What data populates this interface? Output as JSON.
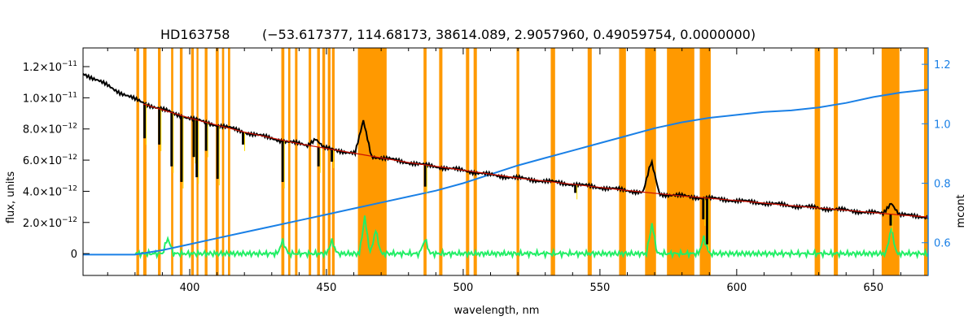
{
  "colors": {
    "mask": "#ff9900",
    "flux": "#000000",
    "model": "#cc1100",
    "masked_flux": "#ffdd00",
    "mcont": "#1a80e6",
    "residual": "#22ee66",
    "right_axis": "#1a80e6"
  },
  "chart_data": {
    "type": "line",
    "title": "HD163758",
    "subtitle": "(−53.617377, 114.68173, 38614.089, 2.9057960, 0.49059754, 0.0000000)",
    "xlabel": "wavelength, nm",
    "ylabel": "flux, units",
    "y2label": "mcont",
    "xlim": [
      361,
      670
    ],
    "ylim": [
      -1.4e-12,
      1.32e-11
    ],
    "y2lim": [
      0.49,
      1.255
    ],
    "xticks": [
      400,
      450,
      500,
      550,
      600,
      650
    ],
    "yticks": [
      {
        "value": 1.2e-11,
        "mant": "1.2",
        "exp": "−11"
      },
      {
        "value": 1e-11,
        "mant": "1.0",
        "exp": "−11"
      },
      {
        "value": 8e-12,
        "mant": "8.0",
        "exp": "−12"
      },
      {
        "value": 6e-12,
        "mant": "6.0",
        "exp": "−12"
      },
      {
        "value": 4e-12,
        "mant": "4.0",
        "exp": "−12"
      },
      {
        "value": 2e-12,
        "mant": "2.0",
        "exp": "−12"
      },
      {
        "value": 0,
        "mant": "0",
        "exp": ""
      }
    ],
    "y2ticks": [
      "1.2",
      "1.0",
      "0.8",
      "0.6"
    ],
    "y2tick_values": [
      1.2,
      1.0,
      0.8,
      0.6
    ],
    "masked_regions": [
      [
        380.5,
        381.5
      ],
      [
        383.0,
        384.2
      ],
      [
        388.4,
        389.4
      ],
      [
        393.2,
        394.0
      ],
      [
        396.4,
        397.4
      ],
      [
        400.5,
        401.5
      ],
      [
        402.5,
        403.2
      ],
      [
        405.5,
        406.5
      ],
      [
        409.5,
        410.6
      ],
      [
        411.8,
        412.6
      ],
      [
        414.0,
        414.8
      ],
      [
        433.5,
        434.6
      ],
      [
        436.0,
        436.8
      ],
      [
        438.5,
        439.4
      ],
      [
        443.5,
        444.4
      ],
      [
        446.6,
        447.6
      ],
      [
        448.5,
        449.5
      ],
      [
        450.5,
        451.5
      ],
      [
        452.0,
        453.0
      ],
      [
        461.5,
        472.0
      ],
      [
        485.5,
        486.6
      ],
      [
        491.2,
        492.4
      ],
      [
        501.0,
        502.2
      ],
      [
        503.8,
        505.0
      ],
      [
        519.5,
        520.5
      ],
      [
        532.0,
        533.6
      ],
      [
        545.5,
        547.0
      ],
      [
        557.0,
        559.5
      ],
      [
        566.5,
        570.5
      ],
      [
        574.5,
        584.5
      ],
      [
        586.5,
        590.5
      ],
      [
        628.5,
        630.5
      ],
      [
        635.5,
        637.0
      ],
      [
        653.0,
        659.5
      ],
      [
        668.5,
        670.0
      ]
    ],
    "series": [
      {
        "key": "flux",
        "points": [
          [
            361,
            1.16e-11
          ],
          [
            365,
            1.12e-11
          ],
          [
            370,
            1.08e-11
          ],
          [
            375,
            1.03e-11
          ],
          [
            380,
            9.9e-12
          ],
          [
            385,
            9.55e-12
          ],
          [
            390,
            9.25e-12
          ],
          [
            395,
            8.95e-12
          ],
          [
            400,
            8.7e-12
          ],
          [
            405,
            8.45e-12
          ],
          [
            410,
            8.25e-12
          ],
          [
            415,
            8.05e-12
          ],
          [
            420,
            7.8e-12
          ],
          [
            425,
            7.6e-12
          ],
          [
            430,
            7.4e-12
          ],
          [
            435,
            7.2e-12
          ],
          [
            440,
            7.05e-12
          ],
          [
            445,
            6.9e-12
          ],
          [
            450,
            6.75e-12
          ],
          [
            455,
            6.6e-12
          ],
          [
            460,
            6.45e-12
          ],
          [
            465,
            6.3e-12
          ],
          [
            470,
            6.15e-12
          ],
          [
            475,
            6e-12
          ],
          [
            480,
            5.85e-12
          ],
          [
            485,
            5.7e-12
          ],
          [
            490,
            5.6e-12
          ],
          [
            495,
            5.45e-12
          ],
          [
            500,
            5.35e-12
          ],
          [
            505,
            5.2e-12
          ],
          [
            510,
            5.05e-12
          ],
          [
            515,
            4.95e-12
          ],
          [
            520,
            4.85e-12
          ],
          [
            525,
            4.75e-12
          ],
          [
            530,
            4.65e-12
          ],
          [
            535,
            4.55e-12
          ],
          [
            540,
            4.45e-12
          ],
          [
            545,
            4.35e-12
          ],
          [
            550,
            4.25e-12
          ],
          [
            555,
            4.15e-12
          ],
          [
            560,
            4.05e-12
          ],
          [
            565,
            3.95e-12
          ],
          [
            570,
            3.85e-12
          ],
          [
            575,
            3.78e-12
          ],
          [
            580,
            3.7e-12
          ],
          [
            585,
            3.62e-12
          ],
          [
            590,
            3.55e-12
          ],
          [
            595,
            3.48e-12
          ],
          [
            600,
            3.4e-12
          ],
          [
            605,
            3.32e-12
          ],
          [
            610,
            3.24e-12
          ],
          [
            615,
            3.16e-12
          ],
          [
            620,
            3.08e-12
          ],
          [
            625,
            3e-12
          ],
          [
            630,
            2.93e-12
          ],
          [
            635,
            2.86e-12
          ],
          [
            640,
            2.78e-12
          ],
          [
            645,
            2.7e-12
          ],
          [
            650,
            2.62e-12
          ],
          [
            655,
            2.55e-12
          ],
          [
            660,
            2.48e-12
          ],
          [
            665,
            2.42e-12
          ],
          [
            670,
            2.35e-12
          ]
        ]
      },
      {
        "key": "model",
        "points": [
          [
            383,
            9.6e-12
          ],
          [
            400,
            8.7e-12
          ],
          [
            420,
            7.8e-12
          ],
          [
            440,
            7.05e-12
          ],
          [
            460,
            6.45e-12
          ],
          [
            480,
            5.85e-12
          ],
          [
            500,
            5.35e-12
          ],
          [
            520,
            4.85e-12
          ],
          [
            540,
            4.45e-12
          ],
          [
            560,
            4.05e-12
          ],
          [
            580,
            3.7e-12
          ],
          [
            600,
            3.4e-12
          ],
          [
            620,
            3.08e-12
          ],
          [
            640,
            2.78e-12
          ],
          [
            660,
            2.48e-12
          ],
          [
            670,
            2.35e-12
          ]
        ]
      },
      {
        "key": "mcont",
        "points": [
          [
            361,
            0.56
          ],
          [
            380,
            0.56
          ],
          [
            390,
            0.575
          ],
          [
            400,
            0.595
          ],
          [
            410,
            0.615
          ],
          [
            420,
            0.635
          ],
          [
            430,
            0.655
          ],
          [
            440,
            0.675
          ],
          [
            450,
            0.695
          ],
          [
            460,
            0.715
          ],
          [
            470,
            0.735
          ],
          [
            480,
            0.755
          ],
          [
            490,
            0.775
          ],
          [
            500,
            0.8
          ],
          [
            510,
            0.83
          ],
          [
            520,
            0.86
          ],
          [
            530,
            0.885
          ],
          [
            540,
            0.91
          ],
          [
            550,
            0.935
          ],
          [
            560,
            0.96
          ],
          [
            570,
            0.985
          ],
          [
            580,
            1.005
          ],
          [
            590,
            1.02
          ],
          [
            600,
            1.03
          ],
          [
            610,
            1.04
          ],
          [
            620,
            1.045
          ],
          [
            630,
            1.055
          ],
          [
            640,
            1.07
          ],
          [
            650,
            1.09
          ],
          [
            660,
            1.105
          ],
          [
            670,
            1.115
          ]
        ]
      }
    ],
    "absorption_lines": [
      {
        "x": 383.5,
        "y": 7.4e-12
      },
      {
        "x": 388.9,
        "y": 7e-12
      },
      {
        "x": 393.4,
        "y": 5.6e-12
      },
      {
        "x": 397.0,
        "y": 4.6e-12
      },
      {
        "x": 401.5,
        "y": 6.2e-12
      },
      {
        "x": 402.6,
        "y": 4.9e-12
      },
      {
        "x": 406.0,
        "y": 6.6e-12
      },
      {
        "x": 410.2,
        "y": 4.8e-12
      },
      {
        "x": 419.5,
        "y": 7e-12
      },
      {
        "x": 434.0,
        "y": 4.6e-12
      },
      {
        "x": 447.1,
        "y": 5.6e-12
      },
      {
        "x": 452.0,
        "y": 5.9e-12
      },
      {
        "x": 486.1,
        "y": 4.3e-12
      },
      {
        "x": 541.0,
        "y": 3.9e-12
      },
      {
        "x": 587.8,
        "y": 2.2e-12
      },
      {
        "x": 589.2,
        "y": 6e-13
      },
      {
        "x": 656.3,
        "y": 1.8e-12
      }
    ],
    "emission_lines": [
      {
        "x": 463.5,
        "y": 8.5e-12
      },
      {
        "x": 446.0,
        "y": 7.4e-12
      },
      {
        "x": 568.8,
        "y": 5.9e-12
      },
      {
        "x": 656.5,
        "y": 3.3e-12
      }
    ],
    "residual_spikes": [
      {
        "x": 392,
        "y": 1e-12
      },
      {
        "x": 434,
        "y": 8e-13
      },
      {
        "x": 452,
        "y": 8e-13
      },
      {
        "x": 464,
        "y": 2.3e-12
      },
      {
        "x": 468,
        "y": 1.5e-12
      },
      {
        "x": 486,
        "y": 9e-13
      },
      {
        "x": 569,
        "y": 1.9e-12
      },
      {
        "x": 588,
        "y": 1e-12
      },
      {
        "x": 656.5,
        "y": 1.6e-12
      }
    ]
  }
}
